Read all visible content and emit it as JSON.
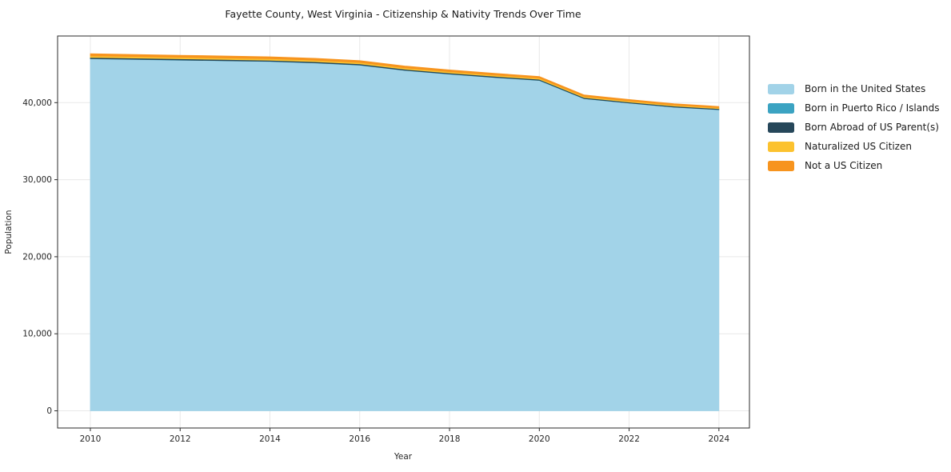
{
  "title": "Fayette County, West Virginia - Citizenship & Nativity Trends Over Time",
  "chart_data": {
    "type": "area",
    "stacked": true,
    "x": [
      2010,
      2011,
      2012,
      2013,
      2014,
      2015,
      2016,
      2017,
      2018,
      2019,
      2020,
      2021,
      2022,
      2023,
      2024
    ],
    "series": [
      {
        "id": "born_us",
        "name": "Born in the United States",
        "color": "#a2d3e8",
        "values": [
          45695,
          45605,
          45515,
          45430,
          45340,
          45150,
          44865,
          44180,
          43695,
          43260,
          42880,
          40505,
          39935,
          39410,
          39080
        ]
      },
      {
        "id": "born_pr_islands",
        "name": "Born in Puerto Rico / Islands",
        "color": "#3ba3c2",
        "values": [
          25,
          25,
          25,
          25,
          25,
          25,
          25,
          25,
          25,
          25,
          25,
          20,
          20,
          20,
          20
        ]
      },
      {
        "id": "born_abroad",
        "name": "Born Abroad of US Parent(s)",
        "color": "#26475a",
        "values": [
          150,
          150,
          148,
          145,
          143,
          140,
          138,
          135,
          132,
          130,
          128,
          125,
          122,
          120,
          118
        ]
      },
      {
        "id": "naturalized",
        "name": "Naturalized US Citizen",
        "color": "#fcc22f",
        "values": [
          210,
          205,
          200,
          196,
          192,
          188,
          184,
          180,
          172,
          165,
          158,
          150,
          140,
          130,
          122
        ]
      },
      {
        "id": "not_citizen",
        "name": "Not a US Citizen",
        "color": "#f7941e",
        "values": [
          270,
          265,
          260,
          255,
          250,
          245,
          240,
          232,
          225,
          218,
          210,
          200,
          185,
          172,
          160
        ]
      }
    ],
    "xlabel": "Year",
    "ylabel": "Population",
    "xticks": [
      2010,
      2012,
      2014,
      2016,
      2018,
      2020,
      2022,
      2024
    ],
    "yticks": [
      0,
      10000,
      20000,
      30000,
      40000
    ],
    "xlim": [
      2009.27,
      2024.68
    ],
    "ylim": [
      -2230,
      48650
    ],
    "grid": true,
    "legend_position": "right",
    "axis_color": "#2b2b2b",
    "grid_color": "#e8e8e8"
  }
}
